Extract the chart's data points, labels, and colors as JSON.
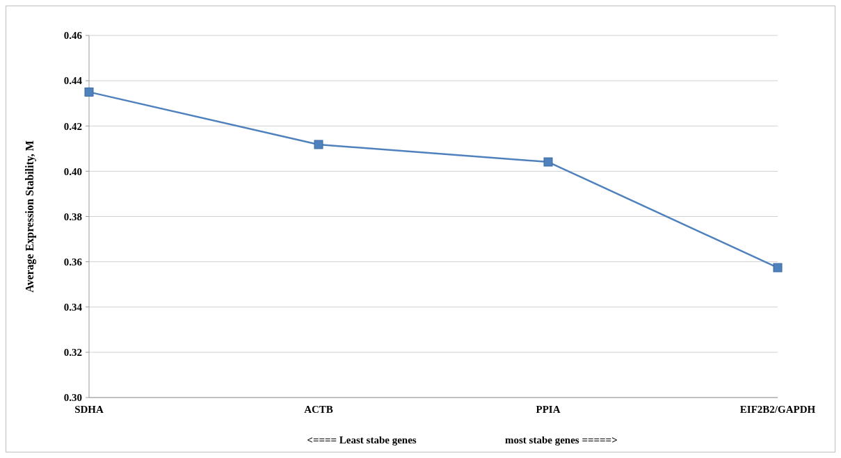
{
  "chart_data": {
    "type": "line",
    "ylabel": "Average Expression Stability, M",
    "categories": [
      "SDHA",
      "ACTB",
      "PPIA",
      "EIF2B2/GAPDH"
    ],
    "series": [
      {
        "color": "#4f81bd",
        "values": [
          0.435,
          0.4118,
          0.4041,
          0.3574
        ]
      }
    ],
    "ylim": [
      0.3,
      0.46
    ],
    "yticks": [
      {
        "value": 0.3,
        "label": "0.30"
      },
      {
        "value": 0.32,
        "label": "0.32"
      },
      {
        "value": 0.34,
        "label": "0.34"
      },
      {
        "value": 0.36,
        "label": "0.36"
      },
      {
        "value": 0.38,
        "label": "0.38"
      },
      {
        "value": 0.4,
        "label": "0.40"
      },
      {
        "value": 0.42,
        "label": "0.42"
      },
      {
        "value": 0.44,
        "label": "0.44"
      },
      {
        "value": 0.46,
        "label": "0.46"
      }
    ],
    "grid": "y",
    "marker": "square",
    "line_style": "solid",
    "annotations": [
      "<==== Least stabe genes",
      "most stabe genes =====>"
    ]
  }
}
